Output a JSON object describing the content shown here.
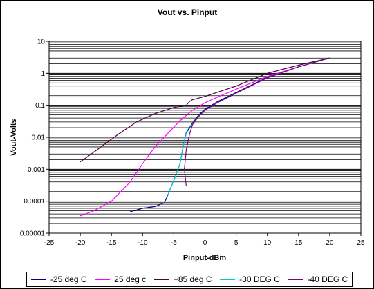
{
  "chart_data": {
    "type": "line",
    "title": "Vout vs. Pinput",
    "xlabel": "Pinput-dBm",
    "ylabel": "Vout-Volts",
    "xlim": [
      -25,
      25
    ],
    "ylim": [
      1e-05,
      10
    ],
    "yscale": "log",
    "xticks": [
      "-25",
      "-20",
      "-15",
      "-10",
      "-5",
      "0",
      "5",
      "10",
      "15",
      "20",
      "25"
    ],
    "yticks": [
      "10",
      "1",
      "0.1",
      "0.01",
      "0.001",
      "0.0001",
      "0.00001"
    ],
    "grid": "horizontal minor and major",
    "legend_position": "bottom",
    "series": [
      {
        "name": "-25 deg C",
        "color": "#000080",
        "points": [
          [
            -12,
            4.7e-05
          ],
          [
            -10,
            6e-05
          ],
          [
            -8,
            6.8e-05
          ],
          [
            -6.5,
            9e-05
          ],
          [
            -6,
            0.00015
          ],
          [
            -5,
            0.00045
          ],
          [
            -4,
            0.0015
          ],
          [
            -3.5,
            0.005
          ],
          [
            -3,
            0.014
          ],
          [
            -2,
            0.028
          ],
          [
            -1,
            0.05
          ],
          [
            0,
            0.075
          ],
          [
            2,
            0.13
          ],
          [
            5,
            0.25
          ],
          [
            10,
            0.75
          ],
          [
            15,
            1.6
          ],
          [
            20,
            3
          ]
        ]
      },
      {
        "name": "25 deg c",
        "color": "#ff00ff",
        "points": [
          [
            -20,
            3.5e-05
          ],
          [
            -18,
            4.8e-05
          ],
          [
            -15,
            0.0001
          ],
          [
            -12,
            0.0004
          ],
          [
            -10,
            0.0015
          ],
          [
            -8,
            0.005
          ],
          [
            -6,
            0.013
          ],
          [
            -4,
            0.033
          ],
          [
            -2,
            0.07
          ],
          [
            0,
            0.12
          ],
          [
            2,
            0.18
          ],
          [
            5,
            0.32
          ],
          [
            10,
            0.8
          ],
          [
            15,
            1.6
          ],
          [
            20,
            3
          ]
        ]
      },
      {
        "name": "+85 deg C",
        "color": "#4b0041",
        "points": [
          [
            -20,
            0.0017
          ],
          [
            -17,
            0.0045
          ],
          [
            -14,
            0.012
          ],
          [
            -11,
            0.03
          ],
          [
            -8,
            0.055
          ],
          [
            -5,
            0.085
          ],
          [
            -3,
            0.1
          ],
          [
            -2.5,
            0.13
          ],
          [
            -2,
            0.15
          ],
          [
            0,
            0.19
          ],
          [
            5,
            0.4
          ],
          [
            10,
            1
          ],
          [
            15,
            1.8
          ],
          [
            20,
            3
          ]
        ]
      },
      {
        "name": "-30 DEG C",
        "color": "#00cccc",
        "points": [
          [
            -6,
            0.00015
          ],
          [
            -5,
            0.00045
          ],
          [
            -4,
            0.0015
          ],
          [
            -3.5,
            0.005
          ],
          [
            -3,
            0.013
          ],
          [
            -2,
            0.026
          ],
          [
            -1,
            0.045
          ],
          [
            0,
            0.07
          ],
          [
            2,
            0.12
          ],
          [
            5,
            0.24
          ],
          [
            10,
            0.72
          ],
          [
            15,
            1.6
          ],
          [
            20,
            3
          ]
        ]
      },
      {
        "name": "-40 DEG C",
        "color": "#800080",
        "points": [
          [
            -3,
            0.0003
          ],
          [
            -3.3,
            0.001
          ],
          [
            -3,
            0.004
          ],
          [
            -2.5,
            0.012
          ],
          [
            -2,
            0.025
          ],
          [
            -1,
            0.045
          ],
          [
            0,
            0.07
          ],
          [
            2,
            0.12
          ],
          [
            5,
            0.24
          ],
          [
            10,
            0.72
          ],
          [
            15,
            1.6
          ],
          [
            20,
            3
          ]
        ]
      }
    ]
  }
}
